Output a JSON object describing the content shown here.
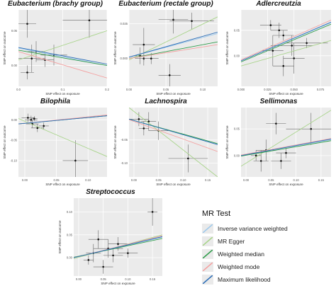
{
  "legend": {
    "title": "MR Test",
    "items": [
      {
        "label": "Inverse variance weighted",
        "color": "#9ec9ec"
      },
      {
        "label": "MR Egger",
        "color": "#a8d48a"
      },
      {
        "label": "Weighted median",
        "color": "#2e9c4a"
      },
      {
        "label": "Weighted mode",
        "color": "#f4a0a0"
      },
      {
        "label": "Maximum likelihood",
        "color": "#2e6fb8"
      }
    ]
  },
  "chart_data": [
    {
      "type": "scatter",
      "title": "Eubacterium (brachy group)",
      "xlabel": "SNP effect on exposure",
      "ylabel": "SNP effect on outcome",
      "xticks": [
        "0.0",
        "0.1",
        "0.2"
      ],
      "xlim": [
        0.0,
        0.2
      ],
      "yticks": [
        "0.00",
        "0.05"
      ],
      "ylim": [
        -0.03,
        0.08
      ],
      "points": [
        {
          "x": 0.02,
          "y": 0.06,
          "xerr": 0.02,
          "yerr": 0.02
        },
        {
          "x": 0.16,
          "y": 0.065,
          "xerr": 0.06,
          "yerr": 0.025
        },
        {
          "x": 0.04,
          "y": 0.02,
          "xerr": 0.02,
          "yerr": 0.015
        },
        {
          "x": 0.03,
          "y": 0.01,
          "xerr": 0.03,
          "yerr": 0.02
        },
        {
          "x": 0.06,
          "y": 0.008,
          "xerr": 0.02,
          "yerr": 0.01
        },
        {
          "x": 0.08,
          "y": 0.015,
          "xerr": 0.03,
          "yerr": 0.015
        },
        {
          "x": 0.02,
          "y": -0.01,
          "xerr": 0.015,
          "yerr": 0.01
        }
      ],
      "lines": [
        {
          "test": "Inverse variance weighted",
          "y0": 0.025,
          "y1": 0.0
        },
        {
          "test": "MR Egger",
          "y0": 0.008,
          "y1": 0.05
        },
        {
          "test": "Weighted median",
          "y0": 0.022,
          "y1": 0.0
        },
        {
          "test": "Weighted mode",
          "y0": 0.02,
          "y1": -0.018
        },
        {
          "test": "Maximum likelihood",
          "y0": 0.026,
          "y1": 0.002
        }
      ]
    },
    {
      "type": "scatter",
      "title": "Eubacterium (rectale group)",
      "xlabel": "SNP effect on exposure",
      "ylabel": "SNP effect on outcome",
      "xticks": [
        "0.00",
        "0.05",
        "0.10"
      ],
      "xlim": [
        0.0,
        0.12
      ],
      "yticks": [
        "0.000",
        "0.025"
      ],
      "ylim": [
        -0.02,
        0.035
      ],
      "points": [
        {
          "x": 0.06,
          "y": 0.028,
          "xerr": 0.02,
          "yerr": 0.01
        },
        {
          "x": 0.085,
          "y": 0.027,
          "xerr": 0.03,
          "yerr": 0.006
        },
        {
          "x": 0.02,
          "y": 0.01,
          "xerr": 0.015,
          "yerr": 0.012
        },
        {
          "x": 0.015,
          "y": 0.002,
          "xerr": 0.01,
          "yerr": 0.006
        },
        {
          "x": 0.02,
          "y": 0.0,
          "xerr": 0.012,
          "yerr": 0.005
        },
        {
          "x": 0.03,
          "y": 0.0,
          "xerr": 0.01,
          "yerr": 0.004
        },
        {
          "x": 0.055,
          "y": -0.012,
          "xerr": 0.015,
          "yerr": 0.008
        }
      ],
      "lines": [
        {
          "test": "Inverse variance weighted",
          "y0": 0.001,
          "y1": 0.018
        },
        {
          "test": "MR Egger",
          "y0": -0.001,
          "y1": 0.03
        },
        {
          "test": "Weighted median",
          "y0": 0.0,
          "y1": 0.012
        },
        {
          "test": "Weighted mode",
          "y0": 0.0,
          "y1": 0.01
        },
        {
          "test": "Maximum likelihood",
          "y0": 0.001,
          "y1": 0.019
        }
      ]
    },
    {
      "type": "scatter",
      "title": "Adlercreutzia",
      "xlabel": "SNP effect on exposure",
      "ylabel": "SNP effect on outcome",
      "xticks": [
        "0.000",
        "0.025",
        "0.050",
        "0.075"
      ],
      "xlim": [
        0.0,
        0.085
      ],
      "yticks": [
        "0.00",
        "0.05"
      ],
      "ylim": [
        -0.06,
        0.09
      ],
      "points": [
        {
          "x": 0.028,
          "y": 0.06,
          "xerr": 0.01,
          "yerr": 0.01
        },
        {
          "x": 0.036,
          "y": 0.05,
          "xerr": 0.008,
          "yerr": 0.015
        },
        {
          "x": 0.04,
          "y": 0.04,
          "xerr": 0.01,
          "yerr": 0.01
        },
        {
          "x": 0.048,
          "y": 0.02,
          "xerr": 0.02,
          "yerr": 0.02
        },
        {
          "x": 0.03,
          "y": 0.01,
          "xerr": 0.01,
          "yerr": 0.03
        },
        {
          "x": 0.05,
          "y": -0.005,
          "xerr": 0.01,
          "yerr": 0.03
        },
        {
          "x": 0.04,
          "y": -0.02,
          "xerr": 0.01,
          "yerr": 0.02
        },
        {
          "x": 0.062,
          "y": 0.025,
          "xerr": 0.02,
          "yerr": 0.01
        }
      ],
      "lines": [
        {
          "test": "Inverse variance weighted",
          "y0": -0.01,
          "y1": 0.065
        },
        {
          "test": "MR Egger",
          "y0": -0.02,
          "y1": 0.03
        },
        {
          "test": "Weighted median",
          "y0": -0.012,
          "y1": 0.062
        },
        {
          "test": "Weighted mode",
          "y0": -0.008,
          "y1": 0.07
        },
        {
          "test": "Maximum likelihood",
          "y0": -0.01,
          "y1": 0.066
        }
      ]
    },
    {
      "type": "scatter",
      "title": "Bilophila",
      "xlabel": "SNP effect on exposure",
      "ylabel": "SNP effect on outcome",
      "xticks": [
        "0.00",
        "0.05",
        "0.10"
      ],
      "xlim": [
        -0.01,
        0.13
      ],
      "yticks": [
        "0.00",
        "-0.05",
        "-0.10"
      ],
      "ylim": [
        -0.14,
        0.03
      ],
      "points": [
        {
          "x": 0.005,
          "y": 0.005,
          "xerr": 0.01,
          "yerr": 0.01
        },
        {
          "x": 0.01,
          "y": 0.0,
          "xerr": 0.01,
          "yerr": 0.01
        },
        {
          "x": 0.015,
          "y": 0.003,
          "xerr": 0.005,
          "yerr": 0.006
        },
        {
          "x": 0.012,
          "y": -0.01,
          "xerr": 0.01,
          "yerr": 0.01
        },
        {
          "x": 0.02,
          "y": -0.02,
          "xerr": 0.01,
          "yerr": 0.01
        },
        {
          "x": 0.03,
          "y": -0.015,
          "xerr": 0.008,
          "yerr": 0.008
        },
        {
          "x": 0.08,
          "y": -0.1,
          "xerr": 0.02,
          "yerr": 0.05
        }
      ],
      "lines": [
        {
          "test": "Inverse variance weighted",
          "y0": -0.01,
          "y1": 0.01
        },
        {
          "test": "MR Egger",
          "y0": 0.003,
          "y1": -0.09
        },
        {
          "test": "Weighted median",
          "y0": -0.01,
          "y1": 0.01
        },
        {
          "test": "Weighted mode",
          "y0": -0.01,
          "y1": 0.012
        },
        {
          "test": "Maximum likelihood",
          "y0": -0.01,
          "y1": 0.01
        }
      ]
    },
    {
      "type": "scatter",
      "title": "Lachnospira",
      "xlabel": "SNP effect on exposure",
      "ylabel": "SNP effect on outcome",
      "xticks": [
        "0.00",
        "0.05",
        "0.10",
        "0.15"
      ],
      "xlim": [
        -0.01,
        0.17
      ],
      "yticks": [
        "-0.05",
        "-0.10"
      ],
      "ylim": [
        -0.13,
        0.02
      ],
      "points": [
        {
          "x": 0.01,
          "y": -0.005,
          "xerr": 0.02,
          "yerr": 0.015
        },
        {
          "x": 0.03,
          "y": -0.01,
          "xerr": 0.015,
          "yerr": 0.02
        },
        {
          "x": 0.02,
          "y": -0.025,
          "xerr": 0.01,
          "yerr": 0.015
        },
        {
          "x": 0.05,
          "y": -0.03,
          "xerr": 0.02,
          "yerr": 0.02
        },
        {
          "x": 0.11,
          "y": -0.09,
          "xerr": 0.04,
          "yerr": 0.03
        }
      ],
      "lines": [
        {
          "test": "Inverse variance weighted",
          "y0": -0.005,
          "y1": -0.06
        },
        {
          "test": "MR Egger",
          "y0": 0.02,
          "y1": -0.13
        },
        {
          "test": "Weighted median",
          "y0": -0.005,
          "y1": -0.058
        },
        {
          "test": "Weighted mode",
          "y0": -0.006,
          "y1": -0.075
        },
        {
          "test": "Maximum likelihood",
          "y0": -0.005,
          "y1": -0.06
        }
      ]
    },
    {
      "type": "scatter",
      "title": "Sellimonas",
      "xlabel": "SNP effect on exposure",
      "ylabel": "SNP effect on outcome",
      "xticks": [
        "0.00",
        "0.05",
        "0.10",
        "0.15"
      ],
      "xlim": [
        -0.01,
        0.17
      ],
      "yticks": [
        "0.00",
        "0.05"
      ],
      "ylim": [
        -0.04,
        0.09
      ],
      "points": [
        {
          "x": 0.06,
          "y": 0.06,
          "xerr": 0.02,
          "yerr": 0.02
        },
        {
          "x": 0.13,
          "y": 0.05,
          "xerr": 0.05,
          "yerr": 0.03
        },
        {
          "x": 0.04,
          "y": 0.01,
          "xerr": 0.02,
          "yerr": 0.02
        },
        {
          "x": 0.02,
          "y": 0.0,
          "xerr": 0.01,
          "yerr": 0.01
        },
        {
          "x": 0.03,
          "y": -0.01,
          "xerr": 0.015,
          "yerr": 0.02
        },
        {
          "x": 0.07,
          "y": -0.01,
          "xerr": 0.02,
          "yerr": 0.015
        },
        {
          "x": 0.08,
          "y": 0.005,
          "xerr": 0.02,
          "yerr": 0.01
        }
      ],
      "lines": [
        {
          "test": "Inverse variance weighted",
          "y0": 0.0,
          "y1": 0.03
        },
        {
          "test": "MR Egger",
          "y0": -0.02,
          "y1": 0.085
        },
        {
          "test": "Weighted median",
          "y0": -0.001,
          "y1": 0.028
        },
        {
          "test": "Weighted mode",
          "y0": 0.001,
          "y1": 0.032
        },
        {
          "test": "Maximum likelihood",
          "y0": 0.0,
          "y1": 0.031
        }
      ]
    },
    {
      "type": "scatter",
      "title": "Streptococcus",
      "xlabel": "SNP effect on exposure",
      "ylabel": "SNP effect on outcome",
      "xticks": [
        "0.00",
        "0.05",
        "0.10",
        "0.15"
      ],
      "xlim": [
        -0.01,
        0.17
      ],
      "yticks": [
        "0.00",
        "0.05",
        "0.10"
      ],
      "ylim": [
        -0.04,
        0.13
      ],
      "points": [
        {
          "x": 0.15,
          "y": 0.1,
          "xerr": 0.01,
          "yerr": 0.03
        },
        {
          "x": 0.04,
          "y": 0.04,
          "xerr": 0.02,
          "yerr": 0.02
        },
        {
          "x": 0.08,
          "y": 0.03,
          "xerr": 0.02,
          "yerr": 0.015
        },
        {
          "x": 0.06,
          "y": 0.02,
          "xerr": 0.03,
          "yerr": 0.02
        },
        {
          "x": 0.03,
          "y": 0.01,
          "xerr": 0.015,
          "yerr": 0.02
        },
        {
          "x": 0.07,
          "y": 0.005,
          "xerr": 0.02,
          "yerr": 0.015
        },
        {
          "x": 0.1,
          "y": 0.01,
          "xerr": 0.02,
          "yerr": 0.01
        },
        {
          "x": 0.02,
          "y": -0.005,
          "xerr": 0.01,
          "yerr": 0.01
        },
        {
          "x": 0.05,
          "y": -0.02,
          "xerr": 0.02,
          "yerr": 0.015
        }
      ],
      "lines": [
        {
          "test": "Inverse variance weighted",
          "y0": 0.0,
          "y1": 0.045
        },
        {
          "test": "MR Egger",
          "y0": -0.002,
          "y1": 0.05
        },
        {
          "test": "Weighted median",
          "y0": 0.001,
          "y1": 0.042
        },
        {
          "test": "Weighted mode",
          "y0": 0.0,
          "y1": 0.048
        },
        {
          "test": "Maximum likelihood",
          "y0": 0.0,
          "y1": 0.046
        }
      ]
    }
  ]
}
